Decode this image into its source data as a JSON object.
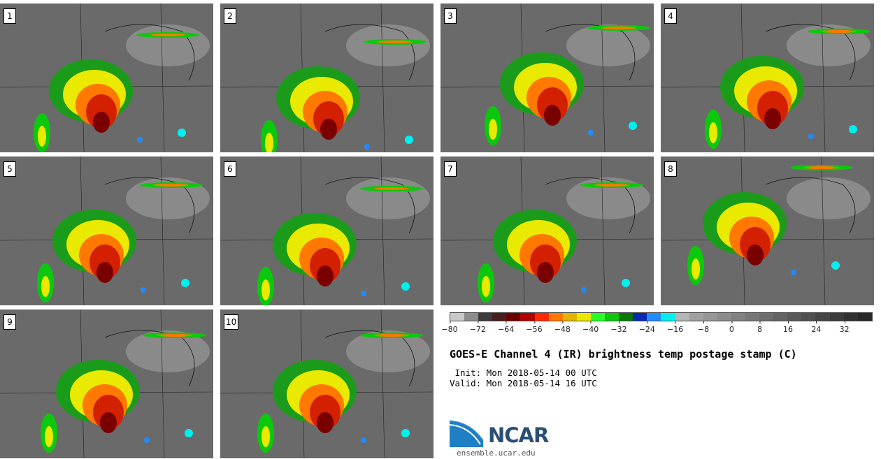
{
  "panels": [
    {
      "number": "1"
    },
    {
      "number": "2"
    },
    {
      "number": "3"
    },
    {
      "number": "4"
    },
    {
      "number": "5"
    },
    {
      "number": "6"
    },
    {
      "number": "7"
    },
    {
      "number": "8"
    },
    {
      "number": "9"
    },
    {
      "number": "10"
    }
  ],
  "colorbar": {
    "colors": [
      "#c8c8c8",
      "#8c8c8c",
      "#3c3c3c",
      "#4a1e1e",
      "#6e0000",
      "#b40000",
      "#ff2800",
      "#ff7800",
      "#e6b400",
      "#eaea00",
      "#28ff28",
      "#0cc80c",
      "#087808",
      "#0a28b4",
      "#1e8cff",
      "#00f0f0",
      "#b4b4b4",
      "#a0a0a0",
      "#969696",
      "#8c8c8c",
      "#828282",
      "#787878",
      "#6e6e6e",
      "#646464",
      "#5a5a5a",
      "#505050",
      "#464646",
      "#3c3c3c",
      "#323232",
      "#282828"
    ],
    "tick_labels": [
      "−80",
      "−72",
      "−64",
      "−56",
      "−48",
      "−40",
      "−32",
      "−24",
      "−16",
      "−8",
      "0",
      "8",
      "16",
      "24",
      "32"
    ]
  },
  "title": "GOES-E Channel 4 (IR) brightness temp postage stamp (C)",
  "init_label": " Init: Mon 2018-05-14 00 UTC",
  "valid_label": "Valid: Mon 2018-05-14 16 UTC",
  "logo": {
    "name": "NCAR",
    "url_text": "ensemble.ucar.edu"
  }
}
